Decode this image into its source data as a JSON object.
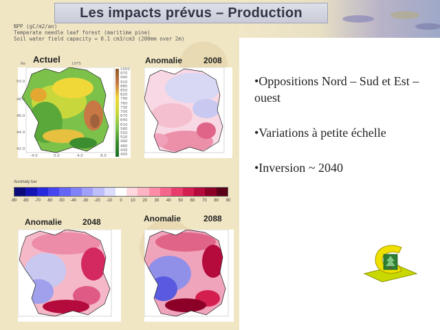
{
  "slide": {
    "title": "Les impacts prévus – Production",
    "header_lines": [
      "NPP (gC/m2/an)",
      "Temperate needle leaf forest (maritime pine)",
      "Soil water field capacity = 0.1 cm3/cm3 (200mm over 2m)"
    ]
  },
  "maps": {
    "actuel": {
      "label": "Actuel",
      "small_label": "1975",
      "side_label": "Re"
    },
    "anom2008": {
      "label": "Anomalie",
      "year": "2008"
    },
    "anom2048": {
      "label": "Anomalie",
      "year": "2048"
    },
    "anom2088": {
      "label": "Anomalie",
      "year": "2088"
    },
    "lat_ticks": [
      "50.0",
      "48.0",
      "46.0",
      "44.0",
      "42.0"
    ],
    "lon_ticks": [
      "-4.0",
      "0.0",
      "4.0",
      "8.0"
    ]
  },
  "actuel_scale": [
    "1000",
    "970",
    "940",
    "910",
    "880",
    "850",
    "820",
    "790",
    "760",
    "730",
    "700",
    "670",
    "640",
    "610",
    "580",
    "550",
    "520",
    "490",
    "460",
    "430",
    "400"
  ],
  "colorbar": {
    "title": "Anomaly bar",
    "ticks": [
      "-90",
      "-80",
      "-70",
      "-60",
      "-50",
      "-40",
      "-30",
      "-20",
      "-10",
      "0",
      "10",
      "20",
      "30",
      "40",
      "50",
      "60",
      "70",
      "80",
      "90"
    ],
    "colors": [
      "#0a0a78",
      "#1414b4",
      "#2828dc",
      "#4646f0",
      "#6464f5",
      "#8282f8",
      "#a0a0fa",
      "#bebefc",
      "#dcdcfe",
      "#ffffff",
      "#ffd8e0",
      "#ffb4c4",
      "#ff8ca6",
      "#f5648a",
      "#e83c6c",
      "#d41e50",
      "#b40a3c",
      "#8c0028",
      "#5a0018"
    ]
  },
  "bullets": [
    "•Oppositions Nord – Sud et Est – ouest",
    "•Variations à petite échelle",
    "•Inversion ~ 2040"
  ],
  "icons": {
    "logo": "forest-c-logo-icon"
  }
}
